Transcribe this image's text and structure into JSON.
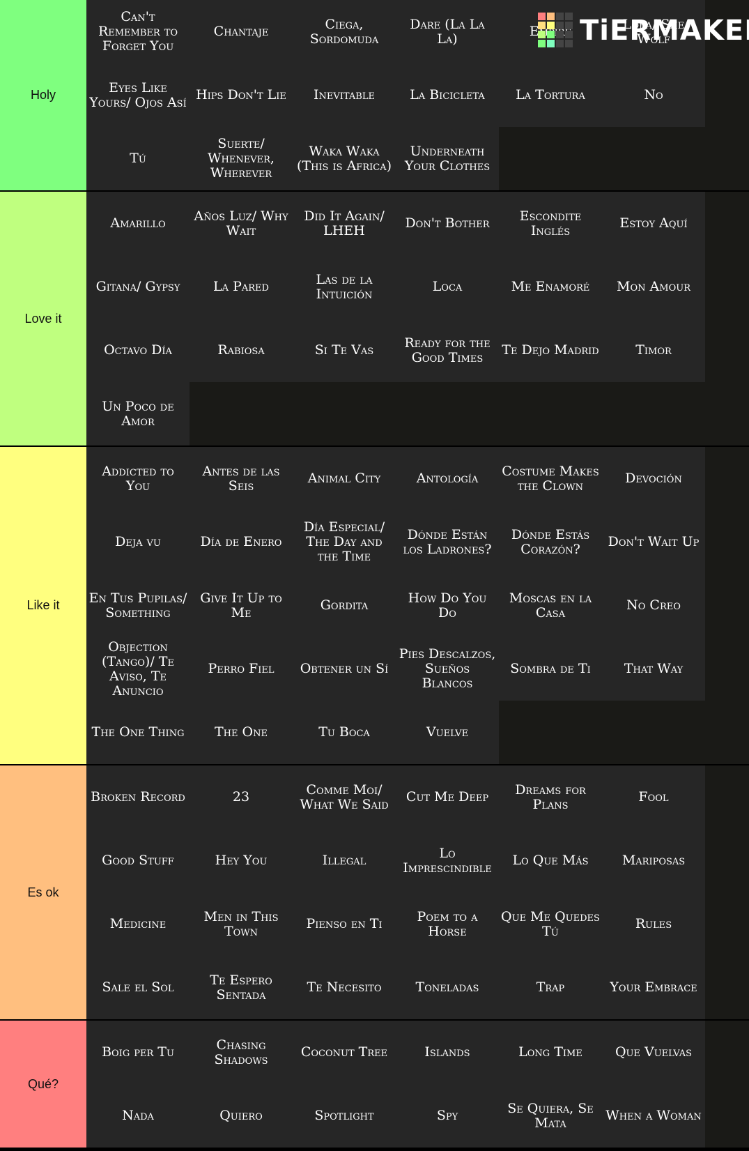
{
  "logo": "TiERMAKER",
  "tiers": [
    {
      "label": "Holy",
      "color": "#7fff7f",
      "items": [
        "Can't Remember to Forget You",
        "Chantaje",
        "Ciega, Sordomuda",
        "Dare (La La La)",
        "Empire",
        "Loba/ She Wolf",
        "Eyes Like Yours/ Ojos Así",
        "Hips Don't Lie",
        "Inevitable",
        "La Bicicleta",
        "La Tortura",
        "No",
        "Tú",
        "Suerte/ Whenever, Wherever",
        "Waka Waka (This is Africa)",
        "Underneath Your Clothes"
      ]
    },
    {
      "label": "Love it",
      "color": "#bfff7f",
      "items": [
        "Amarillo",
        "Años Luz/ Why Wait",
        "Did It Again/ LHEH",
        "Don't Bother",
        "Escondite Inglés",
        "Estoy Aquí",
        "Gitana/ Gypsy",
        "La Pared",
        "Las de la Intuición",
        "Loca",
        "Me Enamoré",
        "Mon Amour",
        "Octavo Día",
        "Rabiosa",
        "Si Te Vas",
        "Ready for the Good Times",
        "Te Dejo Madrid",
        "Timor",
        "Un Poco de Amor"
      ]
    },
    {
      "label": "Like it",
      "color": "#ffff7f",
      "items": [
        "Addicted to You",
        "Antes de las Seis",
        "Animal City",
        "Antología",
        "Costume Makes the Clown",
        "Devoción",
        "Deja vu",
        "Día de Enero",
        "Día Especial/ The Day and the Time",
        "Dónde Están los Ladrones?",
        "Dónde Estás Corazón?",
        "Don't Wait Up",
        "En Tus Pupilas/ Something",
        "Give It Up to Me",
        "Gordita",
        "How Do You Do",
        "Moscas en la Casa",
        "No Creo",
        "Objection (Tango)/ Te Aviso, Te Anuncio",
        "Perro Fiel",
        "Obtener un Sí",
        "Pies Descalzos, Sueños Blancos",
        "Sombra de Ti",
        "That Way",
        "The One Thing",
        "The One",
        "Tu Boca",
        "Vuelve"
      ]
    },
    {
      "label": "Es ok",
      "color": "#ffbf7f",
      "items": [
        "Broken Record",
        "23",
        "Comme Moi/ What We Said",
        "Cut Me Deep",
        "Dreams for Plans",
        "Fool",
        "Good Stuff",
        "Hey You",
        "Illegal",
        "Lo Imprescindible",
        "Lo Que Más",
        "Mariposas",
        "Medicine",
        "Men in This Town",
        "Pienso en Ti",
        "Poem to a Horse",
        "Que Me Quedes Tú",
        "Rules",
        "Sale el Sol",
        "Te Espero Sentada",
        "Te Necesito",
        "Toneladas",
        "Trap",
        "Your Embrace"
      ]
    },
    {
      "label": "Qué?",
      "color": "#ff7f7f",
      "items": [
        "Boig per Tu",
        "Chasing Shadows",
        "Coconut Tree",
        "Islands",
        "Long Time",
        "Que Vuelvas",
        "Nada",
        "Quiero",
        "Spotlight",
        "Spy",
        "Se Quiera, Se Mata",
        "When a Woman"
      ]
    }
  ]
}
